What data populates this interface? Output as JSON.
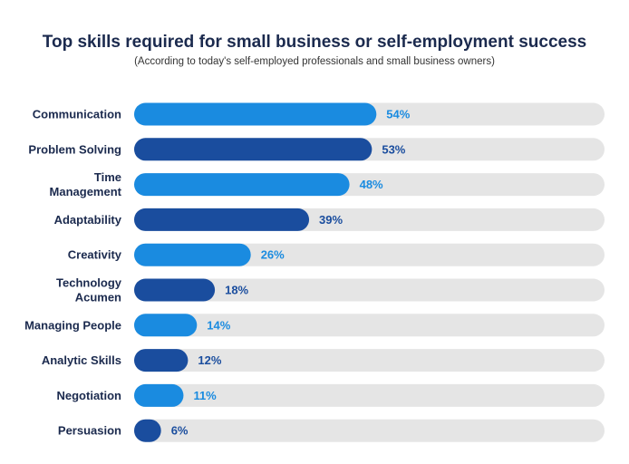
{
  "chart_data": {
    "type": "bar",
    "orientation": "horizontal",
    "title": "Top skills required for small business or self-employment success",
    "subtitle": "(According to today's self-employed professionals and small business owners)",
    "categories": [
      [
        "Communication"
      ],
      [
        "Problem Solving"
      ],
      [
        "Time",
        "Management"
      ],
      [
        "Adaptability"
      ],
      [
        "Creativity"
      ],
      [
        "Technology",
        "Acumen"
      ],
      [
        "Managing People"
      ],
      [
        "Analytic Skills"
      ],
      [
        "Negotiation"
      ],
      [
        "Persuasion"
      ]
    ],
    "values": [
      54,
      53,
      48,
      39,
      26,
      18,
      14,
      12,
      11,
      6
    ],
    "value_labels": [
      "54%",
      "53%",
      "48%",
      "39%",
      "26%",
      "18%",
      "14%",
      "12%",
      "11%",
      "6%"
    ],
    "xlim": [
      0,
      100
    ],
    "grid": false,
    "colors": {
      "light": "#1a8be0",
      "dark": "#1a4d9e",
      "track": "#e5e5e5",
      "label_light": "#1a8be0",
      "label_dark": "#1a4d9e"
    }
  }
}
